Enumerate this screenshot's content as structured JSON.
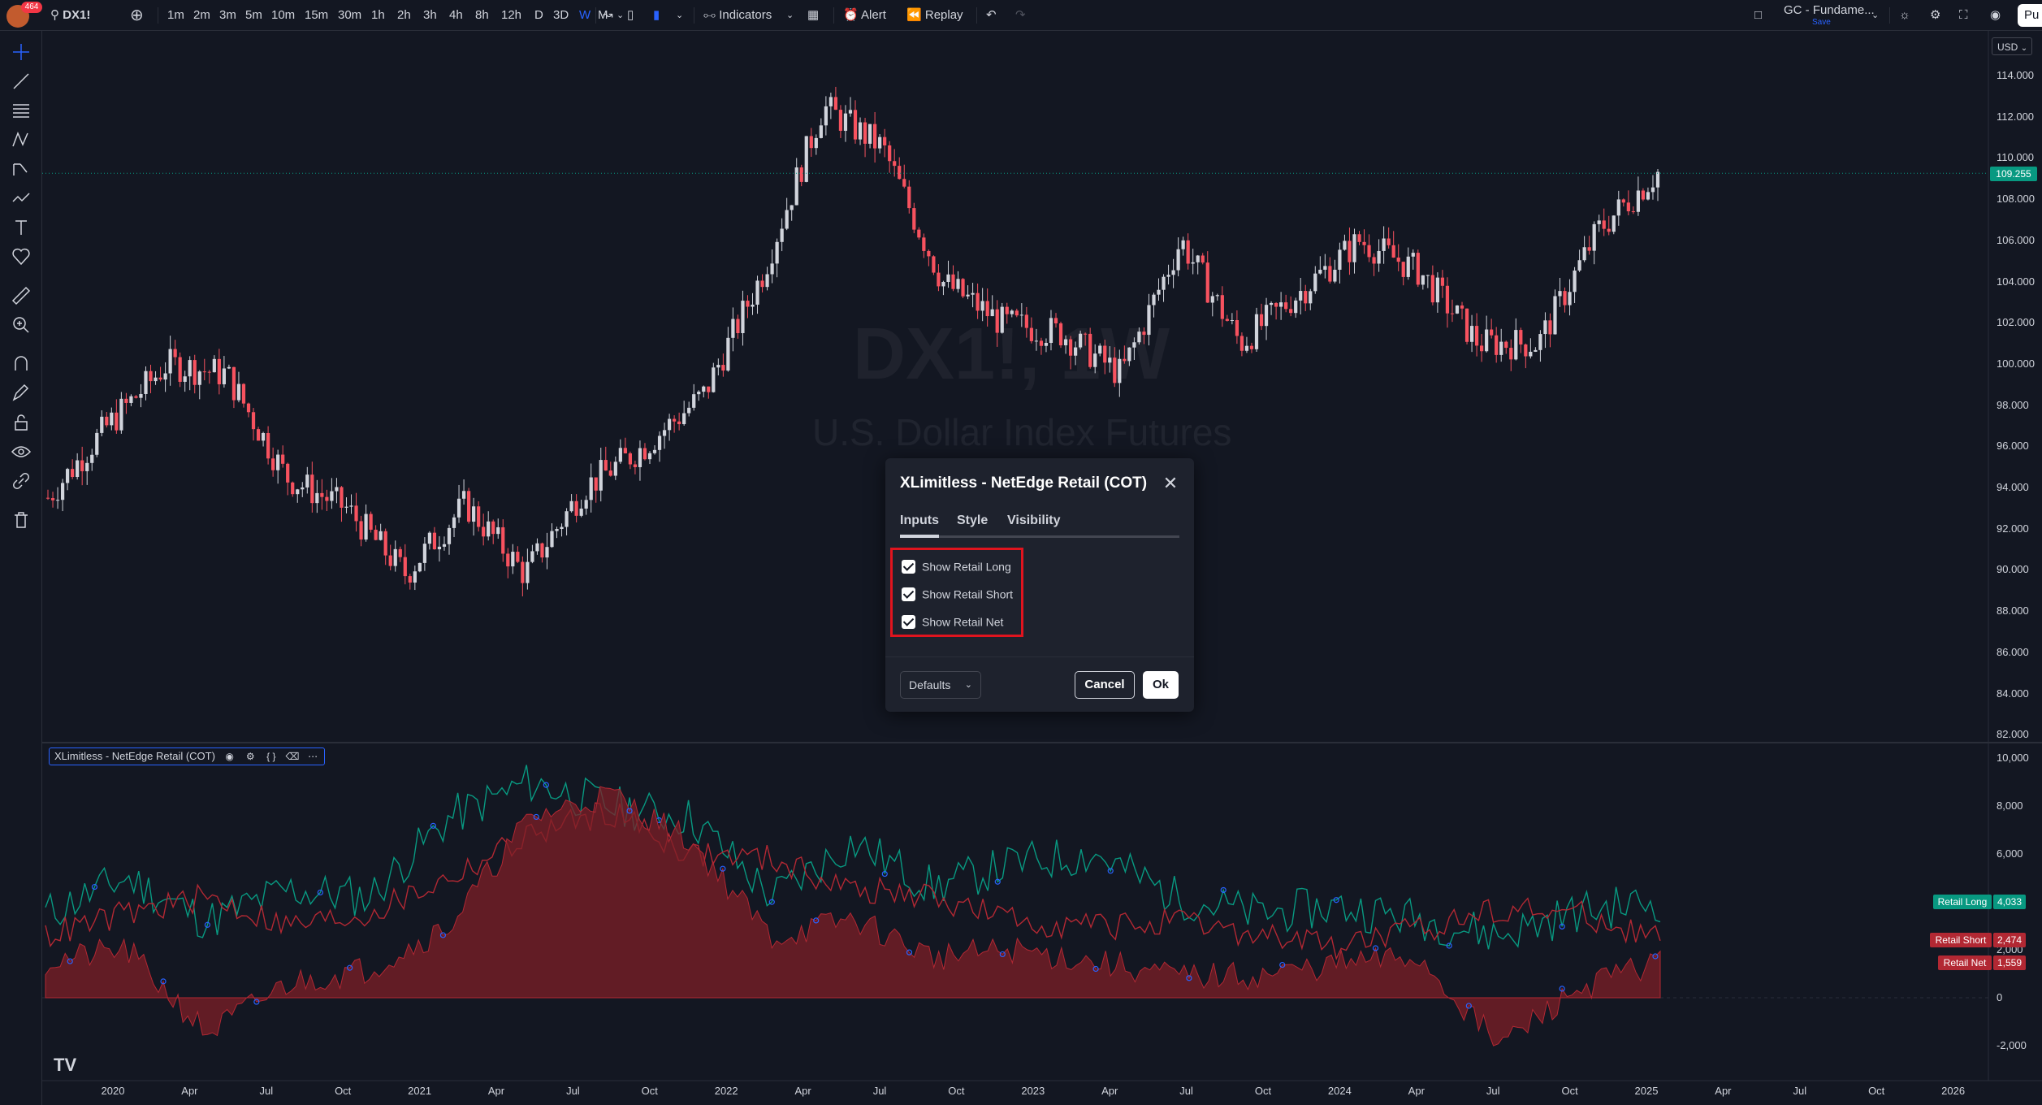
{
  "toolbar": {
    "alert_count": "464",
    "symbol": "DX1!",
    "intervals": [
      "1m",
      "2m",
      "3m",
      "5m",
      "10m",
      "15m",
      "30m",
      "1h",
      "2h",
      "3h",
      "4h",
      "8h",
      "12h",
      "D",
      "3D",
      "W",
      "M"
    ],
    "active_interval": "W",
    "indicators_label": "Indicators",
    "alert_label": "Alert",
    "replay_label": "Replay",
    "layout_name": "GC - Fundame...",
    "save_status": "Save",
    "publish_label": "Pu"
  },
  "chart": {
    "watermark_symbol": "DX1!, 1W",
    "watermark_description": "U.S. Dollar Index Futures",
    "currency": "USD",
    "last_price": "109.255",
    "price_axis": [
      "114.000",
      "112.000",
      "110.000",
      "108.000",
      "106.000",
      "104.000",
      "102.000",
      "100.000",
      "98.000",
      "96.000",
      "94.000",
      "92.000",
      "90.000",
      "88.000",
      "86.000",
      "84.000",
      "82.000"
    ],
    "time_axis": [
      "2020",
      "Apr",
      "Jul",
      "Oct",
      "2021",
      "Apr",
      "Jul",
      "Oct",
      "2022",
      "Apr",
      "Jul",
      "Oct",
      "2023",
      "Apr",
      "Jul",
      "Oct",
      "2024",
      "Apr",
      "Jul",
      "Oct",
      "2025",
      "Apr",
      "Jul",
      "Oct",
      "2026"
    ],
    "colors": {
      "up": "#d1d4dc",
      "down": "#f7525f",
      "retail_long": "#089981",
      "retail_short": "#b22833",
      "retail_net": "#7d1f27"
    }
  },
  "indicator": {
    "legend_title": "XLimitless - NetEdge Retail (COT)",
    "axis": [
      "10,000",
      "8,000",
      "6,000",
      "4,000",
      "2,000",
      "0",
      "-2,000"
    ],
    "tags": [
      {
        "name": "Retail Long",
        "value": "4,033",
        "color": "#089981"
      },
      {
        "name": "Retail Short",
        "value": "2,474",
        "color": "#b22833"
      },
      {
        "name": "Retail Net",
        "value": "1,559",
        "color": "#b22833"
      }
    ]
  },
  "dialog": {
    "title": "XLimitless - NetEdge Retail (COT)",
    "tabs": [
      "Inputs",
      "Style",
      "Visibility"
    ],
    "active_tab": "Inputs",
    "checkboxes": [
      {
        "label": "Show Retail Long",
        "checked": true
      },
      {
        "label": "Show Retail Short",
        "checked": true
      },
      {
        "label": "Show Retail Net",
        "checked": true
      }
    ],
    "defaults_label": "Defaults",
    "cancel_label": "Cancel",
    "ok_label": "Ok"
  },
  "chart_data": [
    {
      "type": "candlestick",
      "title": "",
      "series_name": "DX1!",
      "x_range": [
        "2019-10",
        "2026-03"
      ],
      "ylim": [
        82,
        115
      ],
      "x": [
        "2019-10",
        "2020-01",
        "2020-03",
        "2020-05",
        "2020-07",
        "2020-09",
        "2020-12",
        "2021-03",
        "2021-06",
        "2021-09",
        "2021-12",
        "2022-03",
        "2022-06",
        "2022-09",
        "2022-10",
        "2022-12",
        "2023-02",
        "2023-05",
        "2023-07",
        "2023-10",
        "2023-12",
        "2024-03",
        "2024-04",
        "2024-06",
        "2024-08",
        "2024-09",
        "2024-11",
        "2025-01"
      ],
      "close": [
        93.5,
        97.0,
        100.0,
        99.5,
        94.5,
        93.0,
        89.8,
        93.2,
        89.8,
        94.0,
        96.0,
        98.5,
        104.5,
        112.5,
        110.5,
        104.0,
        102.0,
        101.5,
        99.5,
        106.0,
        101.0,
        103.5,
        106.0,
        104.5,
        101.0,
        101.0,
        106.5,
        109.3
      ]
    },
    {
      "type": "line",
      "title": "",
      "ylim": [
        -3000,
        10000
      ],
      "x": [
        "2019-10",
        "2020-03",
        "2020-07",
        "2020-11",
        "2021-03",
        "2021-06",
        "2021-09",
        "2021-12",
        "2022-03",
        "2022-06",
        "2022-09",
        "2022-12",
        "2023-03",
        "2023-06",
        "2023-09",
        "2023-12",
        "2024-03",
        "2024-06",
        "2024-08",
        "2024-10",
        "2025-01"
      ],
      "series": [
        {
          "name": "Retail Long",
          "values": [
            3500,
            5000,
            3200,
            4500,
            4200,
            7500,
            9000,
            8000,
            7500,
            4200,
            6500,
            4600,
            5600,
            6000,
            4200,
            3500,
            3800,
            3300,
            2600,
            3600,
            4033
          ]
        },
        {
          "name": "Retail Short",
          "values": [
            2600,
            3500,
            4200,
            3000,
            3500,
            5000,
            6800,
            7800,
            6000,
            5800,
            4500,
            4200,
            3200,
            3000,
            3100,
            2600,
            2200,
            2800,
            3800,
            3500,
            2474
          ]
        },
        {
          "name": "Retail Net",
          "values": [
            1500,
            2000,
            -1500,
            600,
            1200,
            3000,
            7500,
            8500,
            6500,
            2500,
            3300,
            1700,
            2000,
            1500,
            900,
            900,
            1400,
            1700,
            -2000,
            400,
            1559
          ]
        }
      ]
    }
  ]
}
